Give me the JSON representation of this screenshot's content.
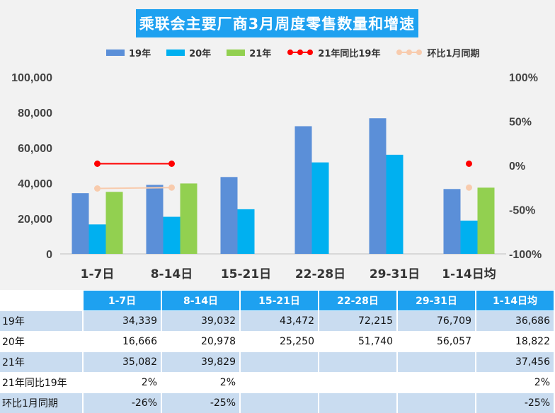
{
  "chart_data": {
    "type": "bar",
    "title": "乘联会主要厂商3月周度零售数量和增速",
    "categories": [
      "1-7日",
      "8-14日",
      "15-21日",
      "22-28日",
      "29-31日",
      "1-14日均"
    ],
    "series": [
      {
        "name": "19年",
        "color": "#5b8fd8",
        "values": [
          34339,
          39032,
          43472,
          72215,
          76709,
          36686
        ]
      },
      {
        "name": "20年",
        "color": "#00b0f0",
        "values": [
          16666,
          20978,
          25250,
          51740,
          56057,
          18822
        ]
      },
      {
        "name": "21年",
        "color": "#92d050",
        "values": [
          35082,
          39829,
          null,
          null,
          null,
          37456
        ]
      }
    ],
    "line_series": [
      {
        "name": "21年同比19年",
        "color": "#ff0000",
        "axis": "right",
        "values": [
          0.02,
          0.02,
          null,
          null,
          null,
          0.02
        ],
        "connect": [
          [
            0,
            1
          ]
        ]
      },
      {
        "name": "环比1月同期",
        "color": "#f8cbad",
        "axis": "right",
        "values": [
          -0.26,
          -0.25,
          null,
          null,
          null,
          -0.25
        ],
        "connect": [
          [
            0,
            1
          ]
        ]
      }
    ],
    "y_left": {
      "min": 0,
      "max": 100000,
      "ticks": [
        "0",
        "20,000",
        "40,000",
        "60,000",
        "80,000",
        "100,000"
      ]
    },
    "y_right": {
      "min": -1.0,
      "max": 1.0,
      "ticks": [
        "-100%",
        "-50%",
        "0%",
        "50%",
        "100%"
      ]
    },
    "legend_position": "top",
    "grid": false
  },
  "table": {
    "headers": [
      "1-7日",
      "8-14日",
      "15-21日",
      "22-28日",
      "29-31日",
      "1-14日均"
    ],
    "rows": [
      {
        "label": "19年",
        "cells": [
          "34,339",
          "39,032",
          "43,472",
          "72,215",
          "76,709",
          "36,686"
        ]
      },
      {
        "label": "20年",
        "cells": [
          "16,666",
          "20,978",
          "25,250",
          "51,740",
          "56,057",
          "18,822"
        ]
      },
      {
        "label": "21年",
        "cells": [
          "35,082",
          "39,829",
          "",
          "",
          "",
          "37,456"
        ]
      },
      {
        "label": "21年同比19年",
        "cells": [
          "2%",
          "2%",
          "",
          "",
          "",
          "2%"
        ]
      },
      {
        "label": "环比1月同期",
        "cells": [
          "-26%",
          "-25%",
          "",
          "",
          "",
          "-25%"
        ]
      }
    ]
  }
}
